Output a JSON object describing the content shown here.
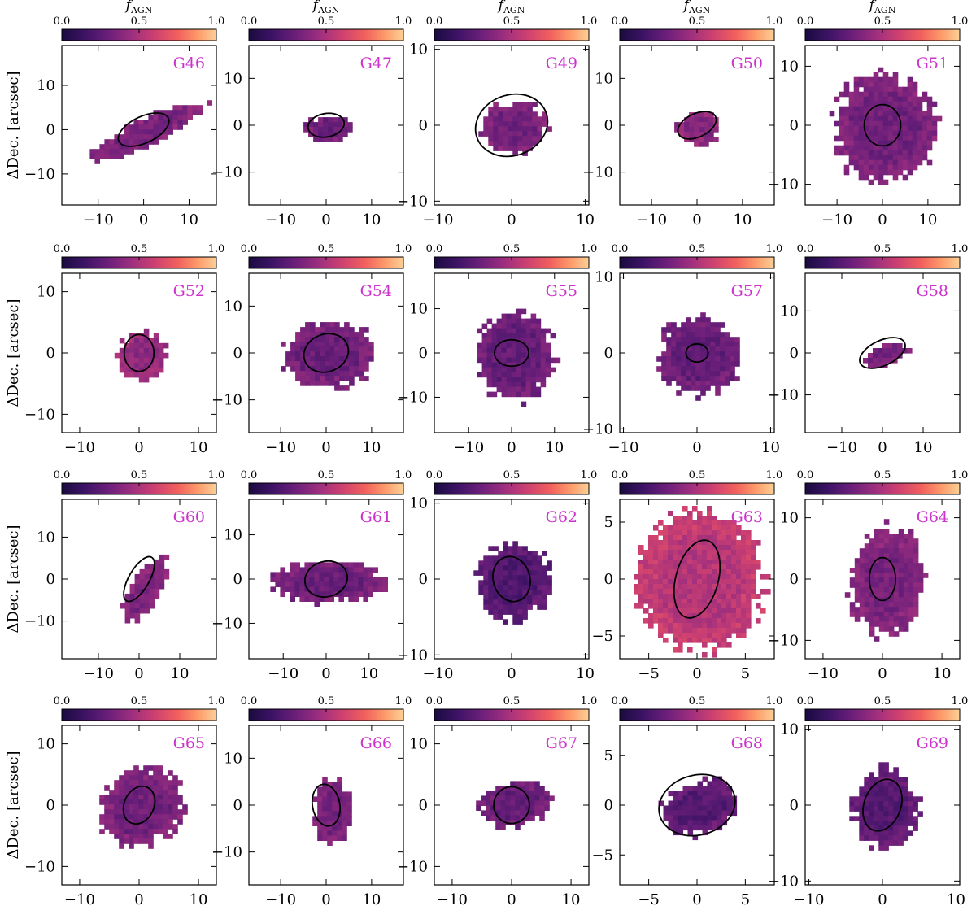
{
  "figure": {
    "colorbar_title_main": "f",
    "colorbar_title_sub": "AGN",
    "ylabel": "ΔDec. [arcsec]",
    "colormap": [
      "#1a0b3f",
      "#3d1366",
      "#6b1f7a",
      "#9c2e7f",
      "#cd4071",
      "#f1605d",
      "#fd9a6a",
      "#fcd096"
    ],
    "panel_label_color": "#cc33cc"
  },
  "chart_data": [
    {
      "type": "heatmap",
      "name": "G46",
      "xlim": [
        -18,
        16
      ],
      "ylim": [
        -17,
        19
      ],
      "xticks": [
        -10,
        0,
        10
      ],
      "yticks": [
        -10,
        0,
        10
      ],
      "clim": [
        0,
        1
      ],
      "cticks": [
        "0.0",
        "0.5",
        "1.0"
      ],
      "show_ctitle": true,
      "show_ylabel": true,
      "fill": 0.32,
      "blob": {
        "cx": 0,
        "cy": 0,
        "rx": 14,
        "ry": 3,
        "angle": -25
      },
      "ellipse": {
        "cx": 0,
        "cy": 0,
        "rx": 6,
        "ry": 3,
        "angle": -25
      }
    },
    {
      "type": "heatmap",
      "name": "G47",
      "xlim": [
        -17,
        17
      ],
      "ylim": [
        -17,
        17
      ],
      "xticks": [
        -10,
        0,
        10
      ],
      "yticks": [
        -10,
        0,
        10
      ],
      "clim": [
        0,
        1
      ],
      "cticks": [
        "0.0",
        "0.5",
        "1.0"
      ],
      "show_ctitle": true,
      "show_ylabel": false,
      "fill": 0.28,
      "blob": {
        "cx": 0,
        "cy": 0,
        "rx": 5,
        "ry": 3,
        "angle": -10
      },
      "ellipse": {
        "cx": 0,
        "cy": 0,
        "rx": 4,
        "ry": 2.5,
        "angle": -10
      }
    },
    {
      "type": "heatmap",
      "name": "G49",
      "xlim": [
        -10.5,
        10.5
      ],
      "ylim": [
        -10.5,
        10.5
      ],
      "xticks": [
        -10,
        0,
        10
      ],
      "yticks": [
        -10,
        0,
        10
      ],
      "clim": [
        0,
        1
      ],
      "cticks": [
        "0.0",
        "0.5",
        "1.0"
      ],
      "show_ctitle": true,
      "show_ylabel": false,
      "fill": 0.3,
      "blob": {
        "cx": 0,
        "cy": 0,
        "rx": 4.5,
        "ry": 3.5,
        "angle": 0
      },
      "ellipse": {
        "cx": 0,
        "cy": 0,
        "rx": 5,
        "ry": 4,
        "angle": -20
      }
    },
    {
      "type": "heatmap",
      "name": "G50",
      "xlim": [
        -17,
        17
      ],
      "ylim": [
        -17,
        17
      ],
      "xticks": [
        -10,
        0,
        10
      ],
      "yticks": [
        -10,
        0,
        10
      ],
      "clim": [
        0,
        1
      ],
      "cticks": [
        "0.0",
        "0.5",
        "1.0"
      ],
      "show_ctitle": true,
      "show_ylabel": false,
      "fill": 0.35,
      "blob": {
        "cx": 0,
        "cy": 0,
        "rx": 5,
        "ry": 3.5,
        "angle": -10
      },
      "ellipse": {
        "cx": 0,
        "cy": 0,
        "rx": 4.5,
        "ry": 2.5,
        "angle": -25
      }
    },
    {
      "type": "heatmap",
      "name": "G51",
      "xlim": [
        -17,
        17
      ],
      "ylim": [
        -13.5,
        13.5
      ],
      "xticks": [
        -10,
        0,
        10
      ],
      "yticks": [
        -10,
        0,
        10
      ],
      "clim": [
        0,
        1
      ],
      "cticks": [
        "0.0",
        "0.5",
        "1.0"
      ],
      "show_ctitle": true,
      "show_ylabel": false,
      "fill": 0.3,
      "blob": {
        "cx": 0,
        "cy": 0,
        "rx": 11,
        "ry": 9,
        "angle": 0
      },
      "ellipse": {
        "cx": 0,
        "cy": 0,
        "rx": 4,
        "ry": 3.5,
        "angle": 0
      }
    },
    {
      "type": "heatmap",
      "name": "G52",
      "xlim": [
        -13,
        13
      ],
      "ylim": [
        -13,
        13
      ],
      "xticks": [
        -10,
        0,
        10
      ],
      "yticks": [
        -10,
        0,
        10
      ],
      "clim": [
        0,
        1
      ],
      "cticks": [
        "0.0",
        "0.5",
        "1.0"
      ],
      "show_ctitle": false,
      "show_ylabel": true,
      "fill": 0.38,
      "blob": {
        "cx": 0,
        "cy": 0,
        "rx": 4,
        "ry": 4,
        "angle": 0
      },
      "ellipse": {
        "cx": 0,
        "cy": 0,
        "rx": 2.5,
        "ry": 3,
        "angle": 0
      }
    },
    {
      "type": "heatmap",
      "name": "G54",
      "xlim": [
        -17,
        17
      ],
      "ylim": [
        -17,
        17
      ],
      "xticks": [
        -10,
        0,
        10
      ],
      "yticks": [
        -10,
        0,
        10
      ],
      "clim": [
        0,
        1
      ],
      "cticks": [
        "0.0",
        "0.5",
        "1.0"
      ],
      "show_ctitle": false,
      "show_ylabel": false,
      "fill": 0.28,
      "blob": {
        "cx": 0,
        "cy": 0,
        "rx": 10,
        "ry": 7,
        "angle": 0
      },
      "ellipse": {
        "cx": 0,
        "cy": 0,
        "rx": 5,
        "ry": 4,
        "angle": -20
      }
    },
    {
      "type": "heatmap",
      "name": "G55",
      "xlim": [
        -18,
        18
      ],
      "ylim": [
        -18,
        18
      ],
      "xticks": [
        -10,
        0,
        10
      ],
      "yticks": [
        -10,
        0,
        10
      ],
      "clim": [
        0,
        1
      ],
      "cticks": [
        "0.0",
        "0.5",
        "1.0"
      ],
      "show_ctitle": false,
      "show_ylabel": false,
      "fill": 0.26,
      "blob": {
        "cx": 0,
        "cy": 0,
        "rx": 9,
        "ry": 10,
        "angle": 0
      },
      "ellipse": {
        "cx": 0,
        "cy": 0,
        "rx": 4,
        "ry": 3,
        "angle": 0
      }
    },
    {
      "type": "heatmap",
      "name": "G57",
      "xlim": [
        -10.5,
        10.5
      ],
      "ylim": [
        -10.5,
        10.5
      ],
      "xticks": [
        -10,
        0,
        10
      ],
      "yticks": [
        -10,
        0,
        10
      ],
      "clim": [
        0,
        1
      ],
      "cticks": [
        "0.0",
        "0.5",
        "1.0"
      ],
      "show_ctitle": false,
      "show_ylabel": false,
      "fill": 0.26,
      "blob": {
        "cx": 0,
        "cy": 0,
        "rx": 5.5,
        "ry": 5,
        "angle": 0
      },
      "ellipse": {
        "cx": 0,
        "cy": 0,
        "rx": 1.5,
        "ry": 1.2,
        "angle": 0
      }
    },
    {
      "type": "heatmap",
      "name": "G58",
      "xlim": [
        -19,
        19
      ],
      "ylim": [
        -19,
        19
      ],
      "xticks": [
        -10,
        0,
        10
      ],
      "yticks": [
        -10,
        0,
        10
      ],
      "clim": [
        0,
        1
      ],
      "cticks": [
        "0.0",
        "0.5",
        "1.0"
      ],
      "show_ctitle": false,
      "show_ylabel": false,
      "fill": 0.3,
      "blob": {
        "cx": 0,
        "cy": 0,
        "rx": 6,
        "ry": 2.5,
        "angle": -25
      },
      "ellipse": {
        "cx": 0,
        "cy": 0,
        "rx": 6,
        "ry": 3,
        "angle": -25
      }
    },
    {
      "type": "heatmap",
      "name": "G60",
      "xlim": [
        -19,
        19
      ],
      "ylim": [
        -19,
        19
      ],
      "xticks": [
        -10,
        0,
        10
      ],
      "yticks": [
        -10,
        0,
        10
      ],
      "clim": [
        0,
        1
      ],
      "cticks": [
        "0.0",
        "0.5",
        "1.0"
      ],
      "show_ctitle": false,
      "show_ylabel": true,
      "fill": 0.33,
      "blob": {
        "cx": 1,
        "cy": -2,
        "rx": 3.5,
        "ry": 9,
        "angle": 30
      },
      "ellipse": {
        "cx": 0,
        "cy": 0,
        "rx": 2.5,
        "ry": 6,
        "angle": 30
      }
    },
    {
      "type": "heatmap",
      "name": "G61",
      "xlim": [
        -18,
        18
      ],
      "ylim": [
        -18,
        18
      ],
      "xticks": [
        -10,
        0,
        10
      ],
      "yticks": [
        -10,
        0,
        10
      ],
      "clim": [
        0,
        1
      ],
      "cticks": [
        "0.0",
        "0.5",
        "1.0"
      ],
      "show_ctitle": false,
      "show_ylabel": false,
      "fill": 0.28,
      "blob": {
        "cx": 0,
        "cy": 0,
        "rx": 13,
        "ry": 4.5,
        "angle": 0
      },
      "ellipse": {
        "cx": 0,
        "cy": 0,
        "rx": 5,
        "ry": 4,
        "angle": -15
      }
    },
    {
      "type": "heatmap",
      "name": "G62",
      "xlim": [
        -10.5,
        10.5
      ],
      "ylim": [
        -10.5,
        10.5
      ],
      "xticks": [
        -10,
        0,
        10
      ],
      "yticks": [
        -10,
        0,
        10
      ],
      "clim": [
        0,
        1
      ],
      "cticks": [
        "0.0",
        "0.5",
        "1.0"
      ],
      "show_ctitle": false,
      "show_ylabel": false,
      "fill": 0.2,
      "blob": {
        "cx": 0,
        "cy": 0,
        "rx": 5,
        "ry": 5,
        "angle": 0
      },
      "ellipse": {
        "cx": 0,
        "cy": 0,
        "rx": 2.5,
        "ry": 3,
        "angle": -15
      }
    },
    {
      "type": "heatmap",
      "name": "G63",
      "xlim": [
        -8,
        8
      ],
      "ylim": [
        -7,
        7
      ],
      "xticks": [
        -5,
        0,
        5
      ],
      "yticks": [
        -5,
        0,
        5
      ],
      "clim": [
        0,
        1
      ],
      "cticks": [
        "0.0",
        "0.5",
        "1.0"
      ],
      "show_ctitle": false,
      "show_ylabel": false,
      "fill": 0.5,
      "blob": {
        "cx": 0,
        "cy": 0,
        "rx": 6.5,
        "ry": 6,
        "angle": 0
      },
      "ellipse": {
        "cx": 0,
        "cy": 0,
        "rx": 2.2,
        "ry": 3.5,
        "angle": 15
      }
    },
    {
      "type": "heatmap",
      "name": "G64",
      "xlim": [
        -13,
        13
      ],
      "ylim": [
        -13,
        13
      ],
      "xticks": [
        -10,
        0,
        10
      ],
      "yticks": [
        -10,
        0,
        10
      ],
      "clim": [
        0,
        1
      ],
      "cticks": [
        "0.0",
        "0.5",
        "1.0"
      ],
      "show_ctitle": false,
      "show_ylabel": false,
      "fill": 0.32,
      "blob": {
        "cx": 0.5,
        "cy": 0,
        "rx": 6,
        "ry": 9,
        "angle": 10
      },
      "ellipse": {
        "cx": 0,
        "cy": 0,
        "rx": 2.2,
        "ry": 3.5,
        "angle": 0
      }
    },
    {
      "type": "heatmap",
      "name": "G65",
      "xlim": [
        -13,
        13
      ],
      "ylim": [
        -13,
        13
      ],
      "xticks": [
        -10,
        0,
        10
      ],
      "yticks": [
        -10,
        0,
        10
      ],
      "clim": [
        0,
        1
      ],
      "cticks": [
        "0.0",
        "0.5",
        "1.0"
      ],
      "show_ctitle": false,
      "show_ylabel": true,
      "fill": 0.3,
      "blob": {
        "cx": 0,
        "cy": 0,
        "rx": 7.5,
        "ry": 6,
        "angle": -25
      },
      "ellipse": {
        "cx": 0,
        "cy": 0,
        "rx": 2.5,
        "ry": 3.2,
        "angle": 25
      }
    },
    {
      "type": "heatmap",
      "name": "G66",
      "xlim": [
        -17,
        17
      ],
      "ylim": [
        -17,
        17
      ],
      "xticks": [
        -10,
        0,
        10
      ],
      "yticks": [
        -10,
        0,
        10
      ],
      "clim": [
        0,
        1
      ],
      "cticks": [
        "0.0",
        "0.5",
        "1.0"
      ],
      "show_ctitle": false,
      "show_ylabel": false,
      "fill": 0.3,
      "blob": {
        "cx": 1,
        "cy": -1,
        "rx": 4,
        "ry": 7,
        "angle": 0
      },
      "ellipse": {
        "cx": 0,
        "cy": 0,
        "rx": 3,
        "ry": 4.5,
        "angle": -10
      }
    },
    {
      "type": "heatmap",
      "name": "G67",
      "xlim": [
        -13,
        13
      ],
      "ylim": [
        -13,
        13
      ],
      "xticks": [
        -10,
        0,
        10
      ],
      "yticks": [
        -10,
        0,
        10
      ],
      "clim": [
        0,
        1
      ],
      "cticks": [
        "0.0",
        "0.5",
        "1.0"
      ],
      "show_ctitle": false,
      "show_ylabel": false,
      "fill": 0.26,
      "blob": {
        "cx": 0,
        "cy": 0.5,
        "rx": 6,
        "ry": 3.5,
        "angle": -10
      },
      "ellipse": {
        "cx": 0,
        "cy": 0,
        "rx": 3,
        "ry": 3,
        "angle": 0
      }
    },
    {
      "type": "heatmap",
      "name": "G68",
      "xlim": [
        -8,
        8
      ],
      "ylim": [
        -8,
        8
      ],
      "xticks": [
        -5,
        0,
        5
      ],
      "yticks": [
        -5,
        0,
        5
      ],
      "clim": [
        0,
        1
      ],
      "cticks": [
        "0.0",
        "0.5",
        "1.0"
      ],
      "show_ctitle": false,
      "show_ylabel": false,
      "fill": 0.22,
      "blob": {
        "cx": 0,
        "cy": 0,
        "rx": 4,
        "ry": 2.5,
        "angle": -20
      },
      "ellipse": {
        "cx": 0,
        "cy": 0,
        "rx": 4,
        "ry": 3,
        "angle": -15
      }
    },
    {
      "type": "heatmap",
      "name": "G69",
      "xlim": [
        -10.5,
        10.5
      ],
      "ylim": [
        -10.5,
        10.5
      ],
      "xticks": [
        -10,
        0,
        10
      ],
      "yticks": [
        -10,
        0,
        10
      ],
      "clim": [
        0,
        1
      ],
      "cticks": [
        "0.0",
        "0.5",
        "1.0"
      ],
      "show_ctitle": false,
      "show_ylabel": false,
      "fill": 0.22,
      "blob": {
        "cx": 0,
        "cy": 0,
        "rx": 4.5,
        "ry": 5,
        "angle": 0
      },
      "ellipse": {
        "cx": 0,
        "cy": 0,
        "rx": 2.5,
        "ry": 3.5,
        "angle": 20
      }
    }
  ]
}
